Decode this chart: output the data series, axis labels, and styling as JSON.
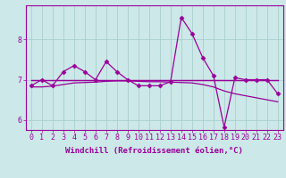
{
  "x": [
    0,
    1,
    2,
    3,
    4,
    5,
    6,
    7,
    8,
    9,
    10,
    11,
    12,
    13,
    14,
    15,
    16,
    17,
    18,
    19,
    20,
    21,
    22,
    23
  ],
  "line1": [
    6.85,
    7.0,
    6.85,
    7.2,
    7.35,
    7.2,
    7.0,
    7.45,
    7.2,
    7.0,
    6.85,
    6.85,
    6.85,
    6.95,
    8.55,
    8.15,
    7.55,
    7.1,
    5.82,
    7.05,
    7.0,
    7.0,
    7.0,
    6.65
  ],
  "line2": [
    6.82,
    6.82,
    6.84,
    6.88,
    6.92,
    6.93,
    6.94,
    6.96,
    6.97,
    6.97,
    6.96,
    6.95,
    6.95,
    6.94,
    6.93,
    6.92,
    6.88,
    6.82,
    6.72,
    6.65,
    6.6,
    6.55,
    6.5,
    6.45
  ],
  "line3": [
    7.0,
    7.0,
    7.0,
    7.0,
    7.0,
    7.0,
    7.0,
    7.0,
    7.0,
    7.0,
    7.0,
    7.0,
    7.0,
    7.0,
    7.0,
    7.0,
    7.0,
    7.0,
    7.0,
    7.0,
    7.0,
    7.0,
    7.0,
    7.0
  ],
  "line4": [
    7.0,
    7.0,
    7.0,
    7.0,
    7.0,
    7.0,
    7.0,
    7.0,
    7.0,
    7.0,
    7.0,
    7.0,
    7.0,
    7.0,
    7.0,
    7.0,
    7.0,
    7.0,
    7.0,
    7.0,
    7.0,
    7.0,
    7.0,
    7.0
  ],
  "color": "#990099",
  "bg_color": "#cce8e8",
  "grid_color": "#aacece",
  "xlabel": "Windchill (Refroidissement éolien,°C)",
  "ylim": [
    5.75,
    8.85
  ],
  "yticks": [
    6,
    7,
    8
  ],
  "xticks": [
    0,
    1,
    2,
    3,
    4,
    5,
    6,
    7,
    8,
    9,
    10,
    11,
    12,
    13,
    14,
    15,
    16,
    17,
    18,
    19,
    20,
    21,
    22,
    23
  ],
  "marker": "D",
  "markersize": 2.5,
  "linewidth": 0.9,
  "xlabel_fontsize": 6.5,
  "tick_fontsize": 6.0
}
